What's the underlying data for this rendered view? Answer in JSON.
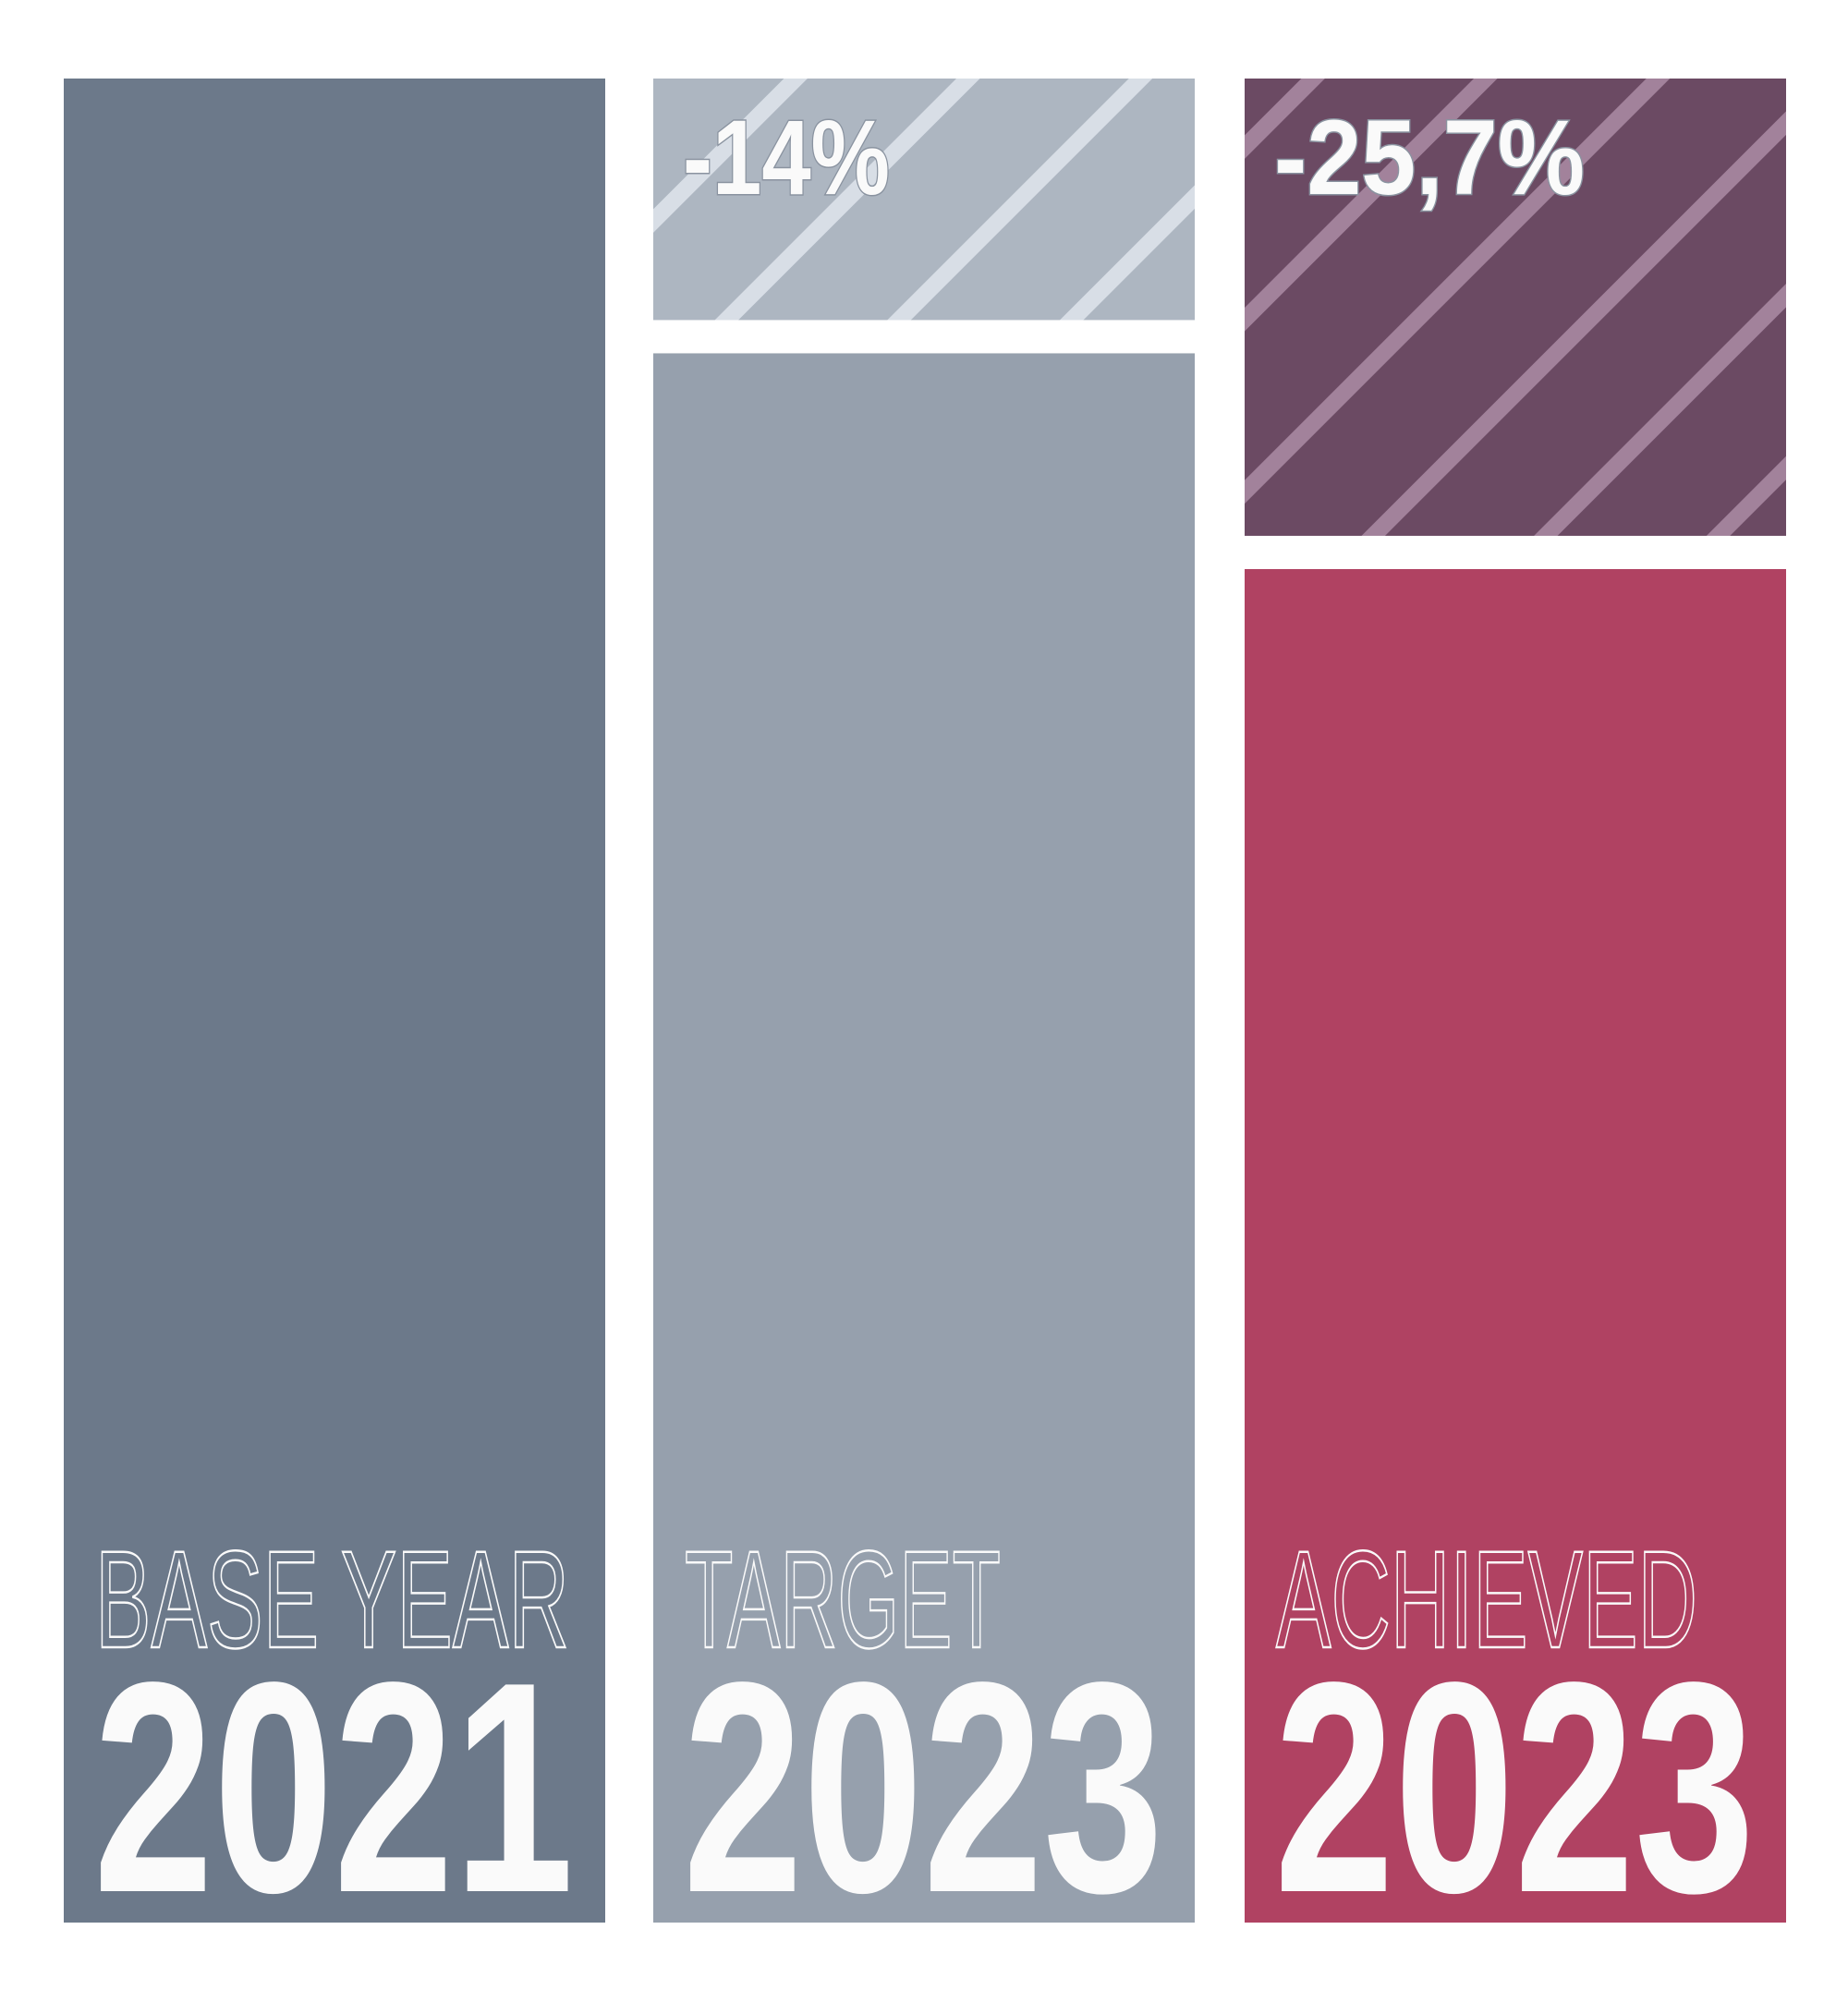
{
  "chart_data": {
    "type": "stacked-bar",
    "categories": [
      "BASE YEAR",
      "TARGET",
      "ACHIEVED"
    ],
    "years": [
      "2021",
      "2023",
      "2023"
    ],
    "values": [
      100,
      86,
      74.3
    ],
    "colors": [
      "#6c798a",
      "#96a0ad",
      "#b04262"
    ],
    "reductions": [
      null,
      -14,
      -25.7
    ],
    "reduction_labels": [
      null,
      "-14%",
      "-25,7%"
    ],
    "reduction_colors": [
      null,
      "#adb6c1",
      "#6b4a63"
    ],
    "reduction_stripe_colors": [
      null,
      "#d8dee6",
      "#a2829b"
    ],
    "ylim": [
      0,
      100
    ]
  }
}
